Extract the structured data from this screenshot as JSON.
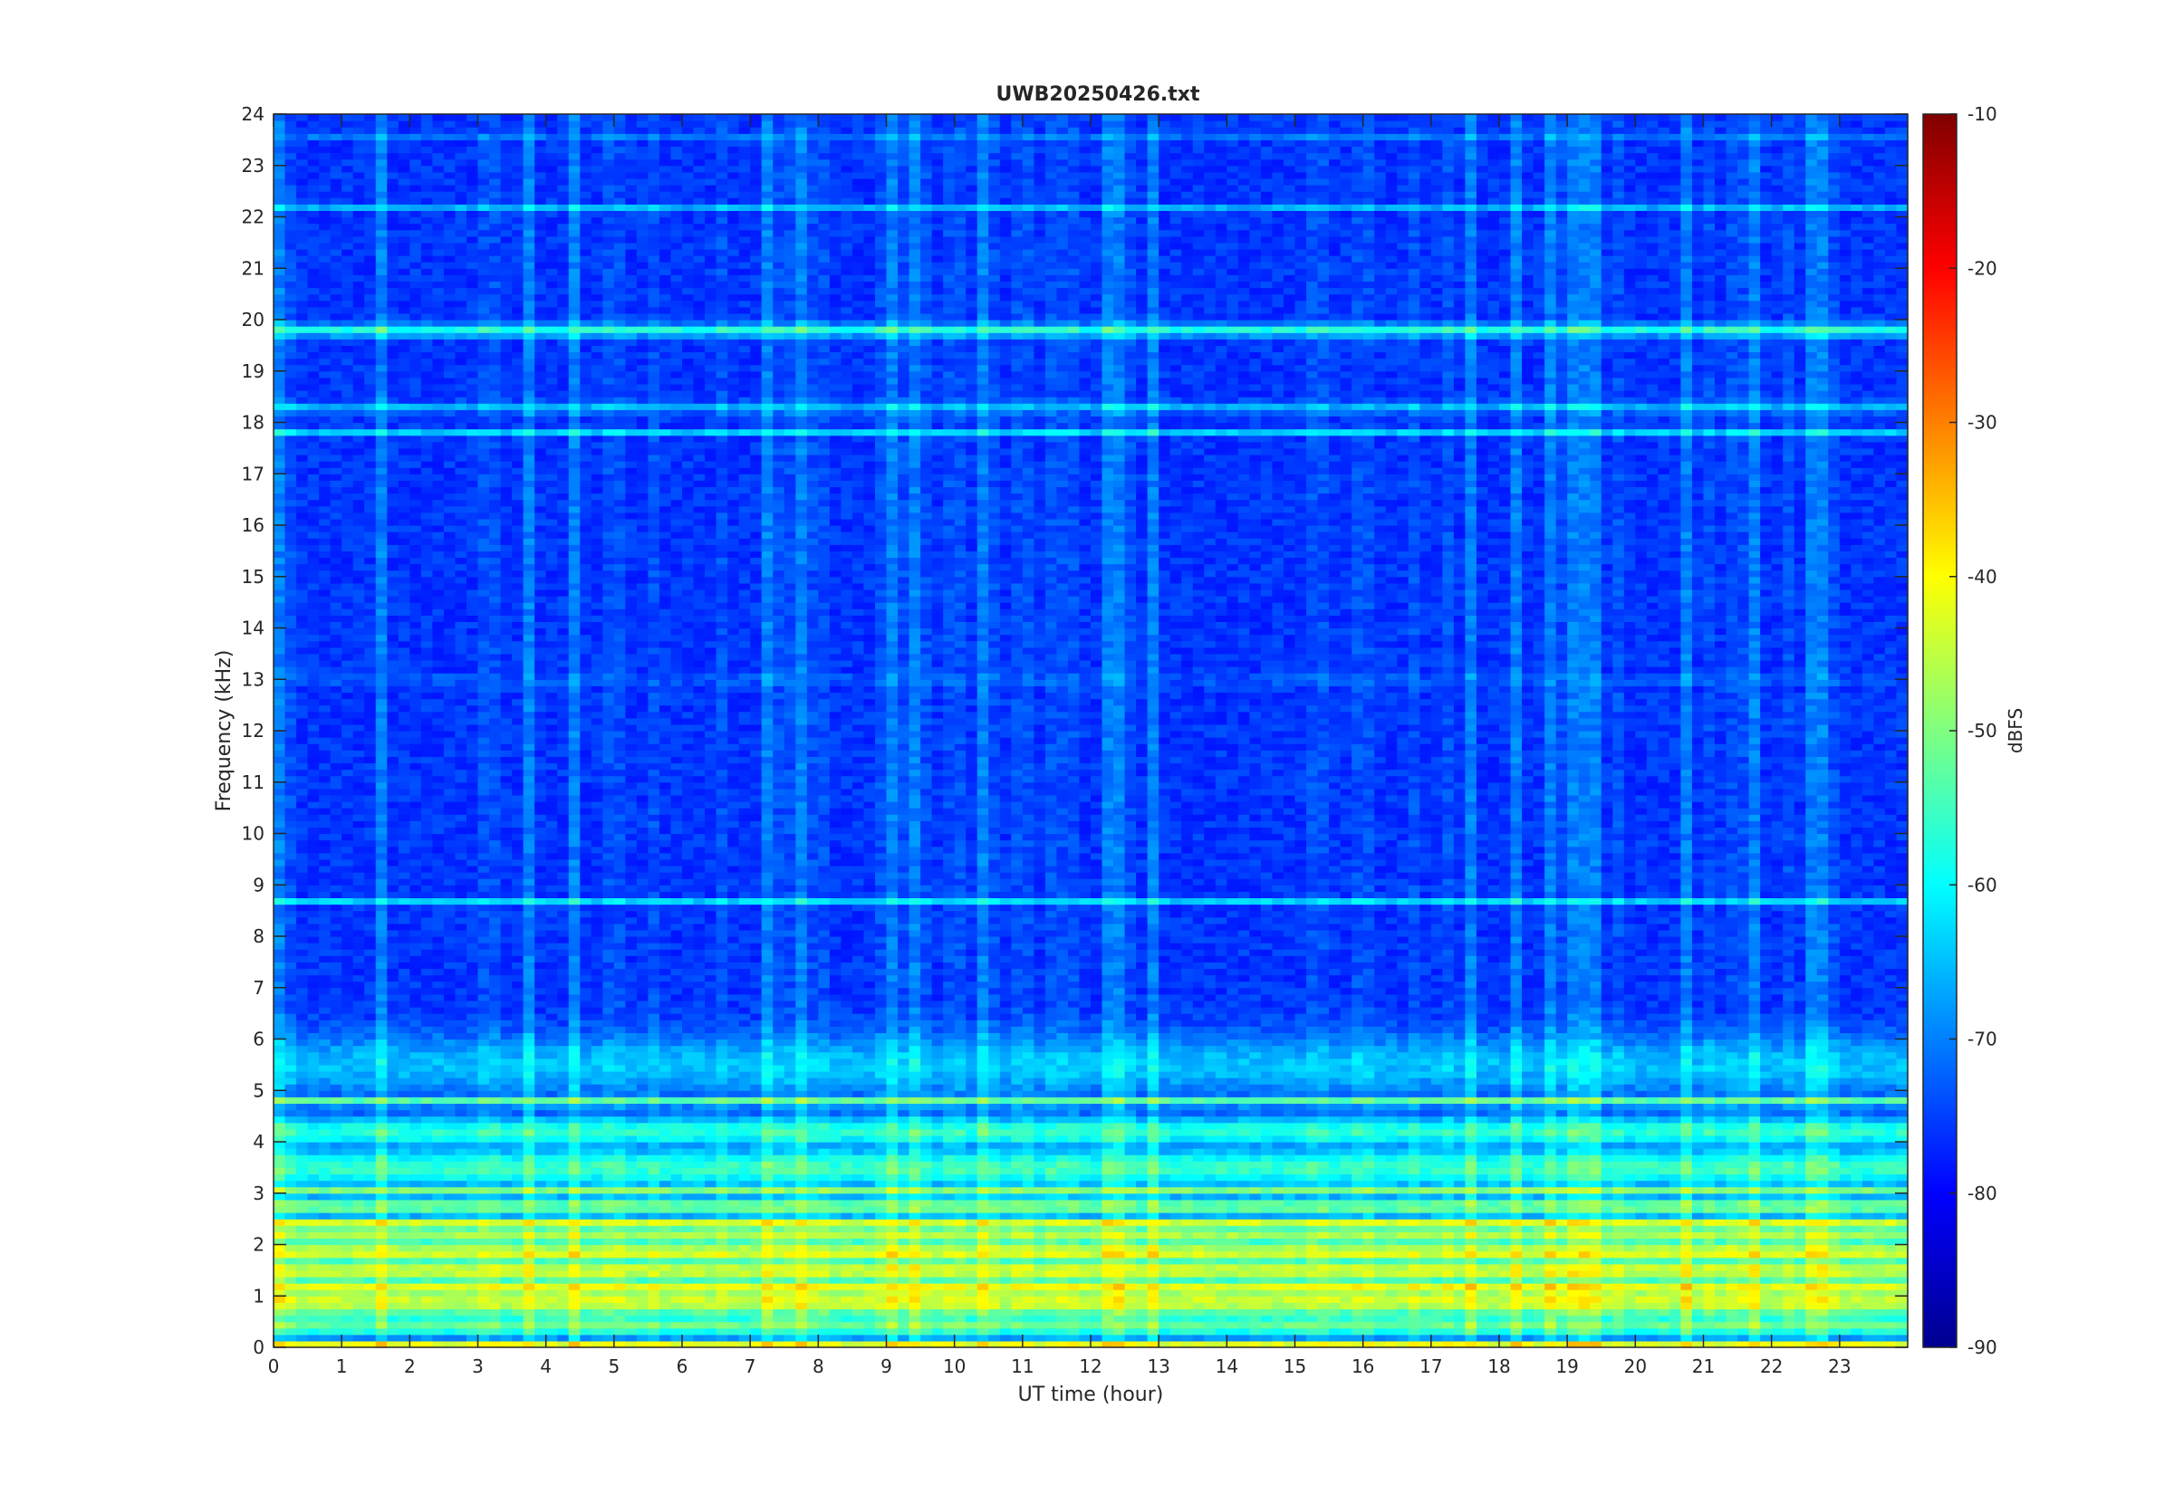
{
  "chart_data": {
    "type": "heatmap",
    "title": "UWB20250426.txt",
    "xlabel": "UT time (hour)",
    "ylabel": "Frequency (kHz)",
    "colorbar_label": "dBFS",
    "xlim": [
      0,
      24
    ],
    "ylim": [
      0,
      24
    ],
    "clim": [
      -90,
      -10
    ],
    "x_ticks": [
      0,
      1,
      2,
      3,
      4,
      5,
      6,
      7,
      8,
      9,
      10,
      11,
      12,
      13,
      14,
      15,
      16,
      17,
      18,
      19,
      20,
      21,
      22,
      23
    ],
    "y_ticks": [
      0,
      1,
      2,
      3,
      4,
      5,
      6,
      7,
      8,
      9,
      10,
      11,
      12,
      13,
      14,
      15,
      16,
      17,
      18,
      19,
      20,
      21,
      22,
      23,
      24
    ],
    "colorbar_ticks": [
      -90,
      -80,
      -70,
      -60,
      -50,
      -40,
      -30,
      -20,
      -10
    ],
    "colormap": "jet",
    "grid": false,
    "background_level": -76,
    "bands": [
      {
        "f": 0.05,
        "level": -42,
        "width": 0.1
      },
      {
        "f": 0.45,
        "level": -52,
        "width": 0.25
      },
      {
        "f": 0.9,
        "level": -44,
        "width": 0.35
      },
      {
        "f": 1.15,
        "level": -41,
        "width": 0.2
      },
      {
        "f": 1.5,
        "level": -44,
        "width": 0.3
      },
      {
        "f": 1.85,
        "level": -43,
        "width": 0.25
      },
      {
        "f": 2.2,
        "level": -47,
        "width": 0.25
      },
      {
        "f": 2.45,
        "level": -43,
        "width": 0.1
      },
      {
        "f": 2.75,
        "level": -51,
        "width": 0.2
      },
      {
        "f": 3.05,
        "level": -50,
        "width": 0.1
      },
      {
        "f": 3.5,
        "level": -56,
        "width": 0.4
      },
      {
        "f": 4.2,
        "level": -57,
        "width": 0.3
      },
      {
        "f": 4.8,
        "level": -53,
        "width": 0.1
      },
      {
        "f": 5.5,
        "level": -65,
        "width": 0.6
      },
      {
        "f": 6.0,
        "level": -63,
        "width": 0.05
      },
      {
        "f": 8.7,
        "level": -63,
        "width": 0.05
      },
      {
        "f": 13.0,
        "level": -66,
        "width": 0.05
      },
      {
        "f": 17.8,
        "level": -63,
        "width": 0.05
      },
      {
        "f": 18.3,
        "level": -66,
        "width": 0.1
      },
      {
        "f": 19.8,
        "level": -58,
        "width": 0.12
      },
      {
        "f": 22.2,
        "level": -66,
        "width": 0.05
      },
      {
        "f": 23.6,
        "level": -68,
        "width": 0.05
      }
    ]
  }
}
